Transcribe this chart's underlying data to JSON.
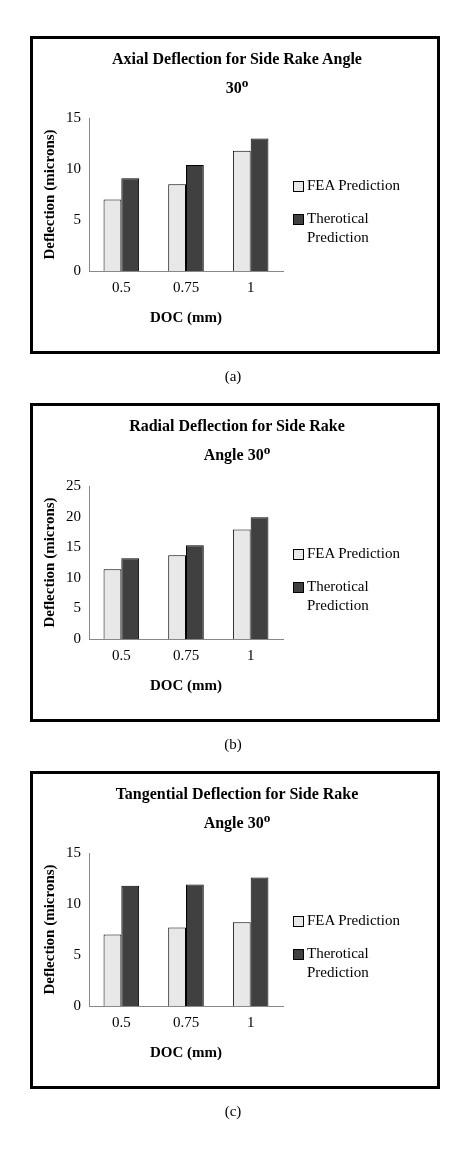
{
  "chart_data": [
    {
      "type": "bar",
      "title": "Axial Deflection for Side Rake Angle 30$^{o}$",
      "xlabel": "DOC (mm)",
      "ylabel": "Deflection (microns)",
      "categories": [
        "0.5",
        "0.75",
        "1"
      ],
      "series": [
        {
          "name": "FEA Prediction",
          "color": "#e8e8e8",
          "values": [
            7.0,
            8.5,
            11.8
          ]
        },
        {
          "name": "Therotical Prediction",
          "color": "#404040",
          "values": [
            9.1,
            10.4,
            13.0
          ]
        }
      ],
      "ylim": [
        0,
        15
      ],
      "yticks": [
        0,
        5,
        10,
        15
      ],
      "grid": false,
      "legend": "right",
      "annotations": [
        "(a)"
      ]
    },
    {
      "type": "bar",
      "title": "Radial Deflection for Side Rake Angle 30$^{o}$",
      "xlabel": "DOC (mm)",
      "ylabel": "Deflection (microns)",
      "categories": [
        "0.5",
        "0.75",
        "1"
      ],
      "series": [
        {
          "name": "FEA Prediction",
          "color": "#e8e8e8",
          "values": [
            11.4,
            13.7,
            17.9
          ]
        },
        {
          "name": "Therotical Prediction",
          "color": "#404040",
          "values": [
            13.2,
            15.3,
            19.9
          ]
        }
      ],
      "ylim": [
        0,
        25
      ],
      "yticks": [
        0,
        5,
        10,
        15,
        20,
        25
      ],
      "grid": false,
      "legend": "right",
      "annotations": [
        "(b)"
      ]
    },
    {
      "type": "bar",
      "title": "Tangential Deflection for Side Rake Angle 30$^{o}$",
      "xlabel": "DOC (mm)",
      "ylabel": "Deflection (microns)",
      "categories": [
        "0.5",
        "0.75",
        "1"
      ],
      "series": [
        {
          "name": "FEA Prediction",
          "color": "#e8e8e8",
          "values": [
            7.0,
            7.7,
            8.2
          ]
        },
        {
          "name": "Therotical Prediction",
          "color": "#404040",
          "values": [
            11.8,
            11.9,
            12.6
          ]
        }
      ],
      "ylim": [
        0,
        15
      ],
      "yticks": [
        0,
        5,
        10,
        15
      ],
      "grid": false,
      "legend": "right",
      "annotations": [
        "(c)"
      ]
    }
  ]
}
